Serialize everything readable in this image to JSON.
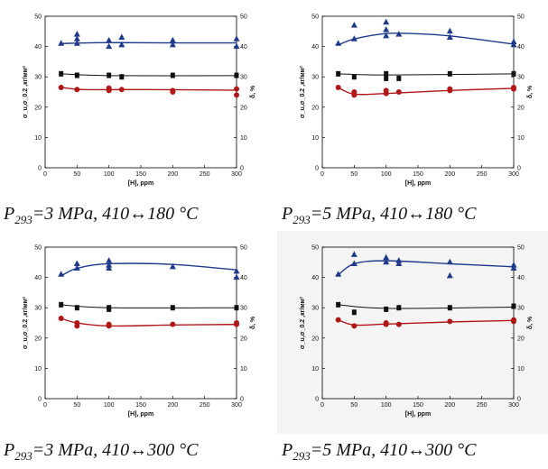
{
  "captions": [
    {
      "p": "P",
      "sub": "293",
      "rest": "=3 MPa, 410↔180 °C"
    },
    {
      "p": "P",
      "sub": "293",
      "rest": "=5 MPa, 410↔180 °C"
    },
    {
      "p": "P",
      "sub": "293",
      "rest": "=3 MPa, 410↔300 °C"
    },
    {
      "p": "P",
      "sub": "293",
      "rest": "=5 MPa, 410↔300 °C"
    }
  ],
  "chart_data": [
    {
      "type": "scatter",
      "xlabel": "[H], ppm",
      "ylabel": "σ_u,σ_0.2 ,кг/мм²",
      "ylabel_right": "δ, %",
      "xlim": [
        0,
        300
      ],
      "ylim": [
        0,
        50
      ],
      "xticks": [
        0,
        50,
        100,
        150,
        200,
        250,
        300
      ],
      "yticks": [
        0,
        10,
        20,
        30,
        40,
        50
      ],
      "colors": {
        "uts": "#1f3a8a",
        "ys": "#111111",
        "elong": "#b01818"
      },
      "series": [
        {
          "role": "uts",
          "marker": "triangle",
          "points": [
            [
              25,
              41
            ],
            [
              50,
              41
            ],
            [
              50,
              44
            ],
            [
              50,
              42.5
            ],
            [
              100,
              40
            ],
            [
              100,
              42
            ],
            [
              120,
              40.5
            ],
            [
              120,
              43
            ],
            [
              200,
              40.5
            ],
            [
              200,
              42
            ],
            [
              300,
              40
            ],
            [
              300,
              42.5
            ]
          ],
          "fit": [
            [
              25,
              41
            ],
            [
              100,
              41.3
            ],
            [
              200,
              41.2
            ],
            [
              300,
              41.2
            ]
          ]
        },
        {
          "role": "ys",
          "marker": "square",
          "points": [
            [
              25,
              31
            ],
            [
              50,
              30.5
            ],
            [
              100,
              30.5
            ],
            [
              120,
              30
            ],
            [
              200,
              30.5
            ],
            [
              300,
              30.5
            ]
          ],
          "fit": [
            [
              25,
              31
            ],
            [
              100,
              30.4
            ],
            [
              300,
              30.4
            ]
          ]
        },
        {
          "role": "elong",
          "marker": "circle",
          "points": [
            [
              25,
              26.5
            ],
            [
              50,
              25.8
            ],
            [
              100,
              25.5
            ],
            [
              100,
              26.3
            ],
            [
              120,
              25.8
            ],
            [
              200,
              25.5
            ],
            [
              200,
              25
            ],
            [
              300,
              26
            ],
            [
              300,
              24
            ]
          ],
          "fit": [
            [
              25,
              26.5
            ],
            [
              60,
              25.8
            ],
            [
              150,
              25.8
            ],
            [
              300,
              25.6
            ]
          ]
        }
      ]
    },
    {
      "type": "scatter",
      "xlabel": "[H], ppm",
      "ylabel": "σ_u,σ_0.2 ,кг/мм²",
      "ylabel_right": "δ, %",
      "xlim": [
        0,
        300
      ],
      "ylim": [
        0,
        50
      ],
      "xticks": [
        0,
        50,
        100,
        150,
        200,
        250,
        300
      ],
      "yticks": [
        0,
        10,
        20,
        30,
        40,
        50
      ],
      "colors": {
        "uts": "#1f3a8a",
        "ys": "#111111",
        "elong": "#b01818"
      },
      "series": [
        {
          "role": "uts",
          "marker": "triangle",
          "points": [
            [
              25,
              41
            ],
            [
              50,
              42.5
            ],
            [
              50,
              47
            ],
            [
              100,
              48
            ],
            [
              100,
              45.5
            ],
            [
              100,
              43.5
            ],
            [
              120,
              44
            ],
            [
              200,
              43
            ],
            [
              200,
              45
            ],
            [
              300,
              41.5
            ],
            [
              300,
              40.5
            ]
          ],
          "fit": [
            [
              25,
              40.5
            ],
            [
              50,
              42.5
            ],
            [
              100,
              44.3
            ],
            [
              150,
              44.2
            ],
            [
              200,
              43.5
            ],
            [
              250,
              42.2
            ],
            [
              300,
              40.8
            ]
          ]
        },
        {
          "role": "ys",
          "marker": "square",
          "points": [
            [
              25,
              31
            ],
            [
              50,
              30
            ],
            [
              100,
              31
            ],
            [
              100,
              29.5
            ],
            [
              120,
              29.5
            ],
            [
              200,
              31
            ],
            [
              300,
              31
            ]
          ],
          "fit": [
            [
              25,
              31
            ],
            [
              100,
              30.6
            ],
            [
              300,
              31
            ]
          ]
        },
        {
          "role": "elong",
          "marker": "circle",
          "points": [
            [
              25,
              26.5
            ],
            [
              50,
              24
            ],
            [
              50,
              25
            ],
            [
              100,
              24.5
            ],
            [
              100,
              25.5
            ],
            [
              120,
              25
            ],
            [
              200,
              25.5
            ],
            [
              200,
              26
            ],
            [
              300,
              26
            ],
            [
              300,
              26.5
            ]
          ],
          "fit": [
            [
              25,
              26.5
            ],
            [
              50,
              24.3
            ],
            [
              100,
              24.5
            ],
            [
              200,
              25.5
            ],
            [
              300,
              26.2
            ]
          ]
        }
      ]
    },
    {
      "type": "scatter",
      "xlabel": "[H], ppm",
      "ylabel": "σ_u,σ_0.2 ,кг/мм²",
      "ylabel_right": "δ, %",
      "xlim": [
        0,
        300
      ],
      "ylim": [
        0,
        50
      ],
      "xticks": [
        0,
        50,
        100,
        150,
        200,
        250,
        300
      ],
      "yticks": [
        0,
        10,
        20,
        30,
        40,
        50
      ],
      "colors": {
        "uts": "#1f3a8a",
        "ys": "#111111",
        "elong": "#b01818"
      },
      "series": [
        {
          "role": "uts",
          "marker": "triangle",
          "points": [
            [
              25,
              41
            ],
            [
              50,
              43
            ],
            [
              50,
              44.5
            ],
            [
              100,
              45.5
            ],
            [
              100,
              44
            ],
            [
              100,
              43
            ],
            [
              200,
              43.5
            ],
            [
              300,
              40
            ],
            [
              300,
              42
            ]
          ],
          "fit": [
            [
              25,
              40.5
            ],
            [
              50,
              43
            ],
            [
              100,
              44.5
            ],
            [
              200,
              44.3
            ],
            [
              300,
              42.5
            ]
          ]
        },
        {
          "role": "ys",
          "marker": "square",
          "points": [
            [
              25,
              31
            ],
            [
              50,
              30
            ],
            [
              100,
              30
            ],
            [
              100,
              29.5
            ],
            [
              200,
              30
            ],
            [
              300,
              30
            ]
          ],
          "fit": [
            [
              25,
              31
            ],
            [
              100,
              30
            ],
            [
              300,
              30
            ]
          ]
        },
        {
          "role": "elong",
          "marker": "circle",
          "points": [
            [
              25,
              26.5
            ],
            [
              50,
              25
            ],
            [
              50,
              24
            ],
            [
              100,
              24
            ],
            [
              100,
              24.5
            ],
            [
              200,
              24.5
            ],
            [
              300,
              24.5
            ],
            [
              300,
              25
            ]
          ],
          "fit": [
            [
              25,
              26.5
            ],
            [
              50,
              25
            ],
            [
              100,
              24
            ],
            [
              200,
              24.3
            ],
            [
              300,
              24.5
            ]
          ]
        }
      ]
    },
    {
      "type": "scatter",
      "xlabel": "[H], ppm",
      "ylabel": "σ_u,σ_0.2 ,кг/мм²",
      "ylabel_right": "δ, %",
      "xlim": [
        0,
        300
      ],
      "ylim": [
        0,
        50
      ],
      "xticks": [
        0,
        50,
        100,
        150,
        200,
        250,
        300
      ],
      "yticks": [
        0,
        10,
        20,
        30,
        40,
        50
      ],
      "colors": {
        "uts": "#1f3a8a",
        "ys": "#111111",
        "elong": "#b01818"
      },
      "series": [
        {
          "role": "uts",
          "marker": "triangle",
          "points": [
            [
              25,
              41
            ],
            [
              50,
              44.5
            ],
            [
              50,
              47.5
            ],
            [
              100,
              46.5
            ],
            [
              100,
              45
            ],
            [
              120,
              44.5
            ],
            [
              120,
              45.5
            ],
            [
              200,
              40.5
            ],
            [
              200,
              45
            ],
            [
              300,
              43
            ],
            [
              300,
              44
            ]
          ],
          "fit": [
            [
              25,
              40.8
            ],
            [
              50,
              44.5
            ],
            [
              100,
              45.5
            ],
            [
              200,
              44.5
            ],
            [
              300,
              43.5
            ]
          ]
        },
        {
          "role": "ys",
          "marker": "square",
          "points": [
            [
              25,
              31
            ],
            [
              50,
              28.5
            ],
            [
              100,
              29.5
            ],
            [
              120,
              30
            ],
            [
              200,
              30
            ],
            [
              300,
              30.5
            ]
          ],
          "fit": [
            [
              25,
              31
            ],
            [
              100,
              29.8
            ],
            [
              300,
              30.2
            ]
          ]
        },
        {
          "role": "elong",
          "marker": "circle",
          "points": [
            [
              25,
              26
            ],
            [
              50,
              24
            ],
            [
              100,
              25
            ],
            [
              100,
              24.5
            ],
            [
              120,
              24.5
            ],
            [
              200,
              25.5
            ],
            [
              300,
              26
            ],
            [
              300,
              25.5
            ]
          ],
          "fit": [
            [
              25,
              26
            ],
            [
              50,
              24.3
            ],
            [
              100,
              24.6
            ],
            [
              200,
              25.3
            ],
            [
              300,
              25.8
            ]
          ]
        }
      ]
    }
  ]
}
